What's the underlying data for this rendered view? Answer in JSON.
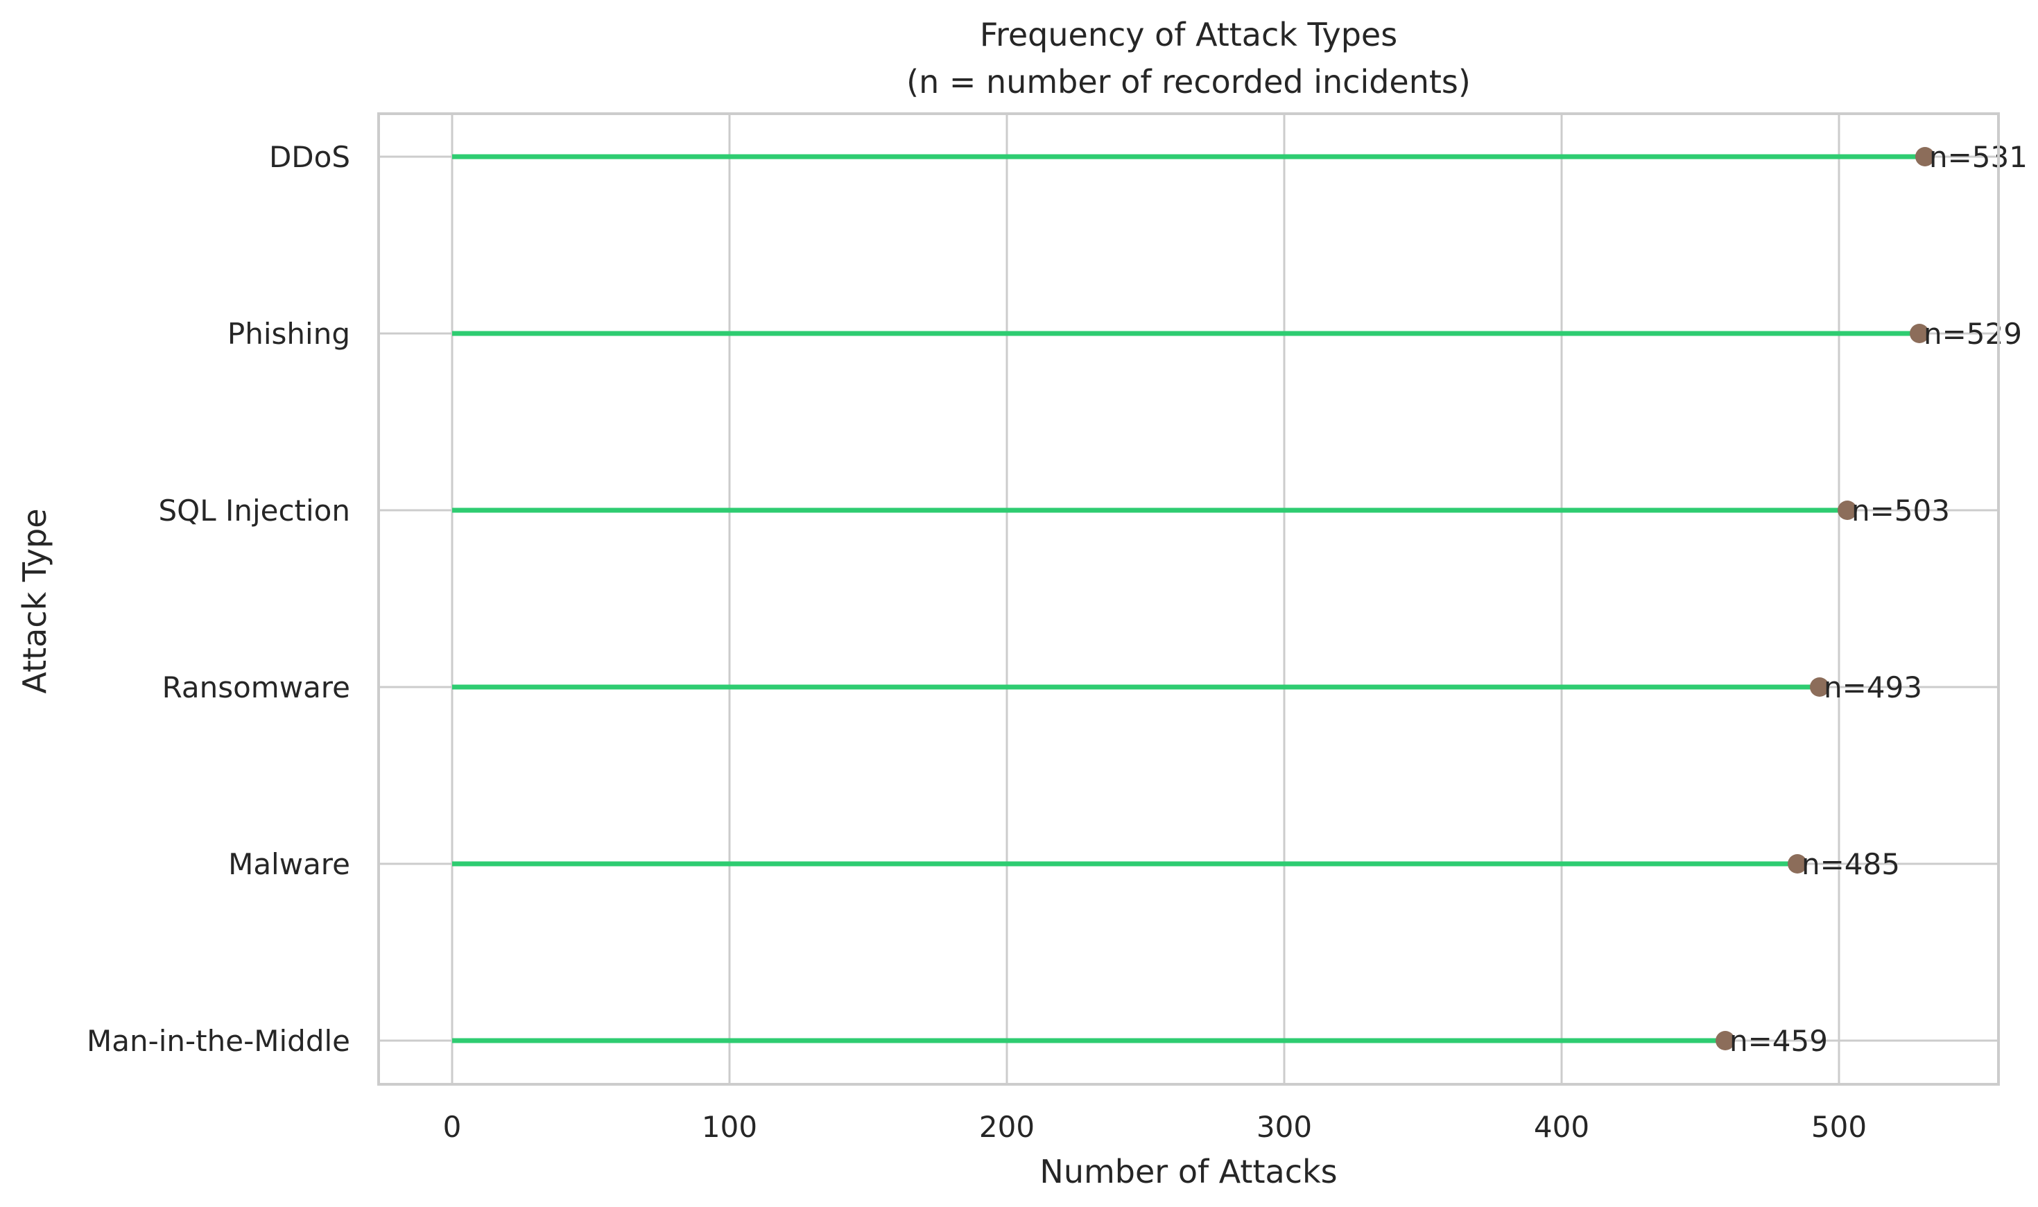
{
  "chart_data": {
    "type": "lollipop",
    "title": "Frequency of Attack Types",
    "subtitle": "(n = number of recorded incidents)",
    "xlabel": "Number of Attacks",
    "ylabel": "Attack Type",
    "orientation": "horizontal",
    "categories": [
      "DDoS",
      "Phishing",
      "SQL Injection",
      "Ransomware",
      "Malware",
      "Man-in-the-Middle"
    ],
    "values": [
      531,
      529,
      503,
      493,
      485,
      459
    ],
    "data_labels": [
      "n=531",
      "n=529",
      "n=503",
      "n=493",
      "n=485",
      "n=459"
    ],
    "xlim": [
      -26.5,
      557.5
    ],
    "xticks": [
      0,
      100,
      200,
      300,
      400,
      500
    ],
    "xtick_labels": [
      "0",
      "100",
      "200",
      "300",
      "400",
      "500"
    ],
    "grid": true,
    "legend": "none",
    "colors": {
      "stem": "#2ecc71",
      "marker": "#8c6d5a",
      "grid": "#cccccc",
      "text": "#262626"
    }
  }
}
